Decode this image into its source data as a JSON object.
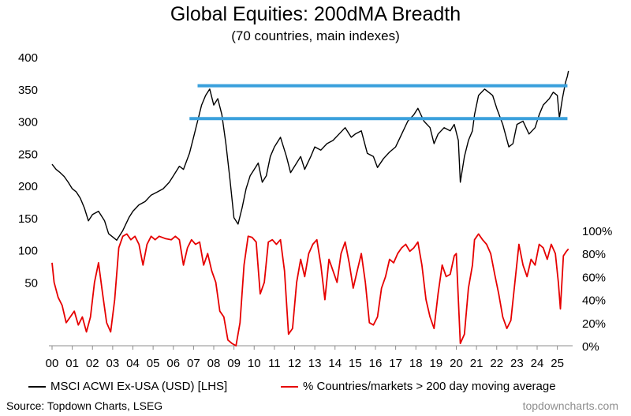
{
  "title": "Global Equities: 200dMA Breadth",
  "subtitle": "(70 countries, main indexes)",
  "source": "Source: Topdown Charts, LSEG",
  "brand": "topdowncharts.com",
  "colors": {
    "msci": "#000000",
    "breadth": "#e60000",
    "ref": "#3aa0dc"
  },
  "chart_data": {
    "type": "line",
    "title": "Global Equities: 200dMA Breadth",
    "subtitle": "(70 countries, main indexes)",
    "x_ticks": [
      "00",
      "01",
      "02",
      "03",
      "04",
      "05",
      "06",
      "07",
      "08",
      "09",
      "10",
      "11",
      "12",
      "13",
      "14",
      "15",
      "16",
      "17",
      "18",
      "19",
      "20",
      "21",
      "22",
      "23",
      "24",
      "25"
    ],
    "xlim": [
      2000,
      2025.6
    ],
    "y_left": {
      "ticks": [
        50,
        100,
        150,
        200,
        250,
        300,
        350,
        400
      ],
      "range": [
        0,
        400
      ]
    },
    "y_right": {
      "ticks": [
        "0%",
        "20%",
        "40%",
        "60%",
        "80%",
        "100%"
      ],
      "range": [
        0,
        100
      ]
    },
    "reference_lines": [
      {
        "value": 355,
        "x_range": [
          2007.2,
          2025.5
        ],
        "axis": "left"
      },
      {
        "value": 304,
        "x_range": [
          2006.8,
          2025.5
        ],
        "axis": "left"
      }
    ],
    "series": [
      {
        "name": "MSCI ACWI Ex-USA (USD) [LHS]",
        "axis": "left",
        "points": [
          [
            2000.0,
            233
          ],
          [
            2000.2,
            225
          ],
          [
            2000.4,
            220
          ],
          [
            2000.6,
            214
          ],
          [
            2000.8,
            205
          ],
          [
            2001.0,
            195
          ],
          [
            2001.2,
            190
          ],
          [
            2001.4,
            180
          ],
          [
            2001.6,
            165
          ],
          [
            2001.8,
            145
          ],
          [
            2002.0,
            155
          ],
          [
            2002.3,
            160
          ],
          [
            2002.6,
            145
          ],
          [
            2002.8,
            125
          ],
          [
            2003.0,
            120
          ],
          [
            2003.2,
            115
          ],
          [
            2003.5,
            130
          ],
          [
            2003.8,
            150
          ],
          [
            2004.0,
            160
          ],
          [
            2004.3,
            170
          ],
          [
            2004.6,
            175
          ],
          [
            2004.9,
            185
          ],
          [
            2005.2,
            190
          ],
          [
            2005.5,
            195
          ],
          [
            2005.8,
            205
          ],
          [
            2006.0,
            215
          ],
          [
            2006.3,
            230
          ],
          [
            2006.5,
            225
          ],
          [
            2006.8,
            250
          ],
          [
            2007.0,
            275
          ],
          [
            2007.2,
            300
          ],
          [
            2007.4,
            325
          ],
          [
            2007.6,
            340
          ],
          [
            2007.8,
            350
          ],
          [
            2008.0,
            325
          ],
          [
            2008.2,
            335
          ],
          [
            2008.4,
            310
          ],
          [
            2008.6,
            265
          ],
          [
            2008.8,
            210
          ],
          [
            2009.0,
            150
          ],
          [
            2009.2,
            140
          ],
          [
            2009.4,
            165
          ],
          [
            2009.6,
            195
          ],
          [
            2009.8,
            215
          ],
          [
            2010.0,
            225
          ],
          [
            2010.2,
            235
          ],
          [
            2010.4,
            205
          ],
          [
            2010.6,
            215
          ],
          [
            2010.8,
            245
          ],
          [
            2011.0,
            260
          ],
          [
            2011.3,
            275
          ],
          [
            2011.6,
            245
          ],
          [
            2011.8,
            220
          ],
          [
            2012.0,
            230
          ],
          [
            2012.3,
            245
          ],
          [
            2012.5,
            225
          ],
          [
            2012.8,
            245
          ],
          [
            2013.0,
            260
          ],
          [
            2013.3,
            255
          ],
          [
            2013.6,
            265
          ],
          [
            2013.9,
            270
          ],
          [
            2014.2,
            280
          ],
          [
            2014.5,
            290
          ],
          [
            2014.8,
            275
          ],
          [
            2015.0,
            280
          ],
          [
            2015.3,
            285
          ],
          [
            2015.6,
            250
          ],
          [
            2015.9,
            245
          ],
          [
            2016.1,
            228
          ],
          [
            2016.4,
            242
          ],
          [
            2016.7,
            252
          ],
          [
            2017.0,
            260
          ],
          [
            2017.3,
            280
          ],
          [
            2017.6,
            300
          ],
          [
            2017.9,
            310
          ],
          [
            2018.1,
            320
          ],
          [
            2018.4,
            300
          ],
          [
            2018.7,
            290
          ],
          [
            2018.9,
            265
          ],
          [
            2019.1,
            280
          ],
          [
            2019.4,
            290
          ],
          [
            2019.7,
            285
          ],
          [
            2019.9,
            295
          ],
          [
            2020.1,
            270
          ],
          [
            2020.2,
            205
          ],
          [
            2020.4,
            245
          ],
          [
            2020.6,
            270
          ],
          [
            2020.8,
            285
          ],
          [
            2020.9,
            310
          ],
          [
            2021.1,
            340
          ],
          [
            2021.4,
            350
          ],
          [
            2021.6,
            345
          ],
          [
            2021.8,
            340
          ],
          [
            2022.0,
            320
          ],
          [
            2022.3,
            295
          ],
          [
            2022.6,
            260
          ],
          [
            2022.8,
            265
          ],
          [
            2023.0,
            295
          ],
          [
            2023.3,
            300
          ],
          [
            2023.6,
            280
          ],
          [
            2023.9,
            290
          ],
          [
            2024.1,
            310
          ],
          [
            2024.3,
            325
          ],
          [
            2024.6,
            335
          ],
          [
            2024.8,
            345
          ],
          [
            2025.0,
            340
          ],
          [
            2025.1,
            305
          ],
          [
            2025.25,
            335
          ],
          [
            2025.4,
            360
          ],
          [
            2025.5,
            370
          ],
          [
            2025.55,
            378
          ]
        ]
      },
      {
        "name": "% Countries/markets > 200 day moving average",
        "axis": "right",
        "points": [
          [
            2000.0,
            72
          ],
          [
            2000.1,
            55
          ],
          [
            2000.3,
            42
          ],
          [
            2000.5,
            35
          ],
          [
            2000.7,
            20
          ],
          [
            2000.9,
            25
          ],
          [
            2001.1,
            30
          ],
          [
            2001.3,
            18
          ],
          [
            2001.5,
            25
          ],
          [
            2001.7,
            12
          ],
          [
            2001.9,
            25
          ],
          [
            2002.1,
            55
          ],
          [
            2002.3,
            72
          ],
          [
            2002.5,
            45
          ],
          [
            2002.7,
            20
          ],
          [
            2002.9,
            12
          ],
          [
            2003.1,
            40
          ],
          [
            2003.3,
            85
          ],
          [
            2003.5,
            95
          ],
          [
            2003.7,
            97
          ],
          [
            2003.9,
            92
          ],
          [
            2004.1,
            95
          ],
          [
            2004.3,
            88
          ],
          [
            2004.5,
            70
          ],
          [
            2004.7,
            88
          ],
          [
            2004.9,
            95
          ],
          [
            2005.1,
            92
          ],
          [
            2005.3,
            95
          ],
          [
            2005.6,
            93
          ],
          [
            2005.9,
            92
          ],
          [
            2006.1,
            95
          ],
          [
            2006.3,
            92
          ],
          [
            2006.5,
            70
          ],
          [
            2006.7,
            85
          ],
          [
            2006.9,
            92
          ],
          [
            2007.1,
            88
          ],
          [
            2007.3,
            90
          ],
          [
            2007.5,
            70
          ],
          [
            2007.7,
            80
          ],
          [
            2007.9,
            65
          ],
          [
            2008.1,
            55
          ],
          [
            2008.3,
            30
          ],
          [
            2008.5,
            25
          ],
          [
            2008.7,
            5
          ],
          [
            2008.9,
            2
          ],
          [
            2009.1,
            0
          ],
          [
            2009.3,
            20
          ],
          [
            2009.5,
            70
          ],
          [
            2009.7,
            95
          ],
          [
            2009.9,
            94
          ],
          [
            2010.1,
            90
          ],
          [
            2010.3,
            45
          ],
          [
            2010.5,
            55
          ],
          [
            2010.7,
            90
          ],
          [
            2010.9,
            92
          ],
          [
            2011.1,
            88
          ],
          [
            2011.3,
            92
          ],
          [
            2011.5,
            65
          ],
          [
            2011.7,
            10
          ],
          [
            2011.9,
            15
          ],
          [
            2012.1,
            55
          ],
          [
            2012.3,
            75
          ],
          [
            2012.5,
            60
          ],
          [
            2012.7,
            80
          ],
          [
            2012.9,
            88
          ],
          [
            2013.1,
            92
          ],
          [
            2013.3,
            70
          ],
          [
            2013.5,
            40
          ],
          [
            2013.7,
            75
          ],
          [
            2013.9,
            65
          ],
          [
            2014.1,
            55
          ],
          [
            2014.3,
            80
          ],
          [
            2014.5,
            90
          ],
          [
            2014.7,
            72
          ],
          [
            2014.9,
            50
          ],
          [
            2015.1,
            65
          ],
          [
            2015.3,
            80
          ],
          [
            2015.5,
            55
          ],
          [
            2015.7,
            20
          ],
          [
            2015.9,
            18
          ],
          [
            2016.1,
            25
          ],
          [
            2016.3,
            50
          ],
          [
            2016.5,
            60
          ],
          [
            2016.7,
            75
          ],
          [
            2016.9,
            72
          ],
          [
            2017.1,
            80
          ],
          [
            2017.3,
            85
          ],
          [
            2017.5,
            88
          ],
          [
            2017.7,
            82
          ],
          [
            2017.9,
            85
          ],
          [
            2018.1,
            90
          ],
          [
            2018.3,
            70
          ],
          [
            2018.5,
            40
          ],
          [
            2018.7,
            25
          ],
          [
            2018.9,
            15
          ],
          [
            2019.1,
            45
          ],
          [
            2019.3,
            70
          ],
          [
            2019.5,
            60
          ],
          [
            2019.7,
            62
          ],
          [
            2019.9,
            78
          ],
          [
            2020.0,
            80
          ],
          [
            2020.2,
            2
          ],
          [
            2020.4,
            10
          ],
          [
            2020.6,
            50
          ],
          [
            2020.8,
            70
          ],
          [
            2020.9,
            92
          ],
          [
            2021.1,
            97
          ],
          [
            2021.3,
            92
          ],
          [
            2021.5,
            88
          ],
          [
            2021.7,
            80
          ],
          [
            2021.9,
            62
          ],
          [
            2022.1,
            45
          ],
          [
            2022.3,
            25
          ],
          [
            2022.5,
            15
          ],
          [
            2022.7,
            22
          ],
          [
            2022.9,
            55
          ],
          [
            2023.1,
            88
          ],
          [
            2023.3,
            70
          ],
          [
            2023.5,
            60
          ],
          [
            2023.7,
            75
          ],
          [
            2023.9,
            70
          ],
          [
            2024.1,
            88
          ],
          [
            2024.3,
            85
          ],
          [
            2024.5,
            75
          ],
          [
            2024.7,
            88
          ],
          [
            2024.9,
            80
          ],
          [
            2025.05,
            55
          ],
          [
            2025.15,
            32
          ],
          [
            2025.3,
            78
          ],
          [
            2025.45,
            82
          ],
          [
            2025.55,
            84
          ]
        ]
      }
    ]
  }
}
